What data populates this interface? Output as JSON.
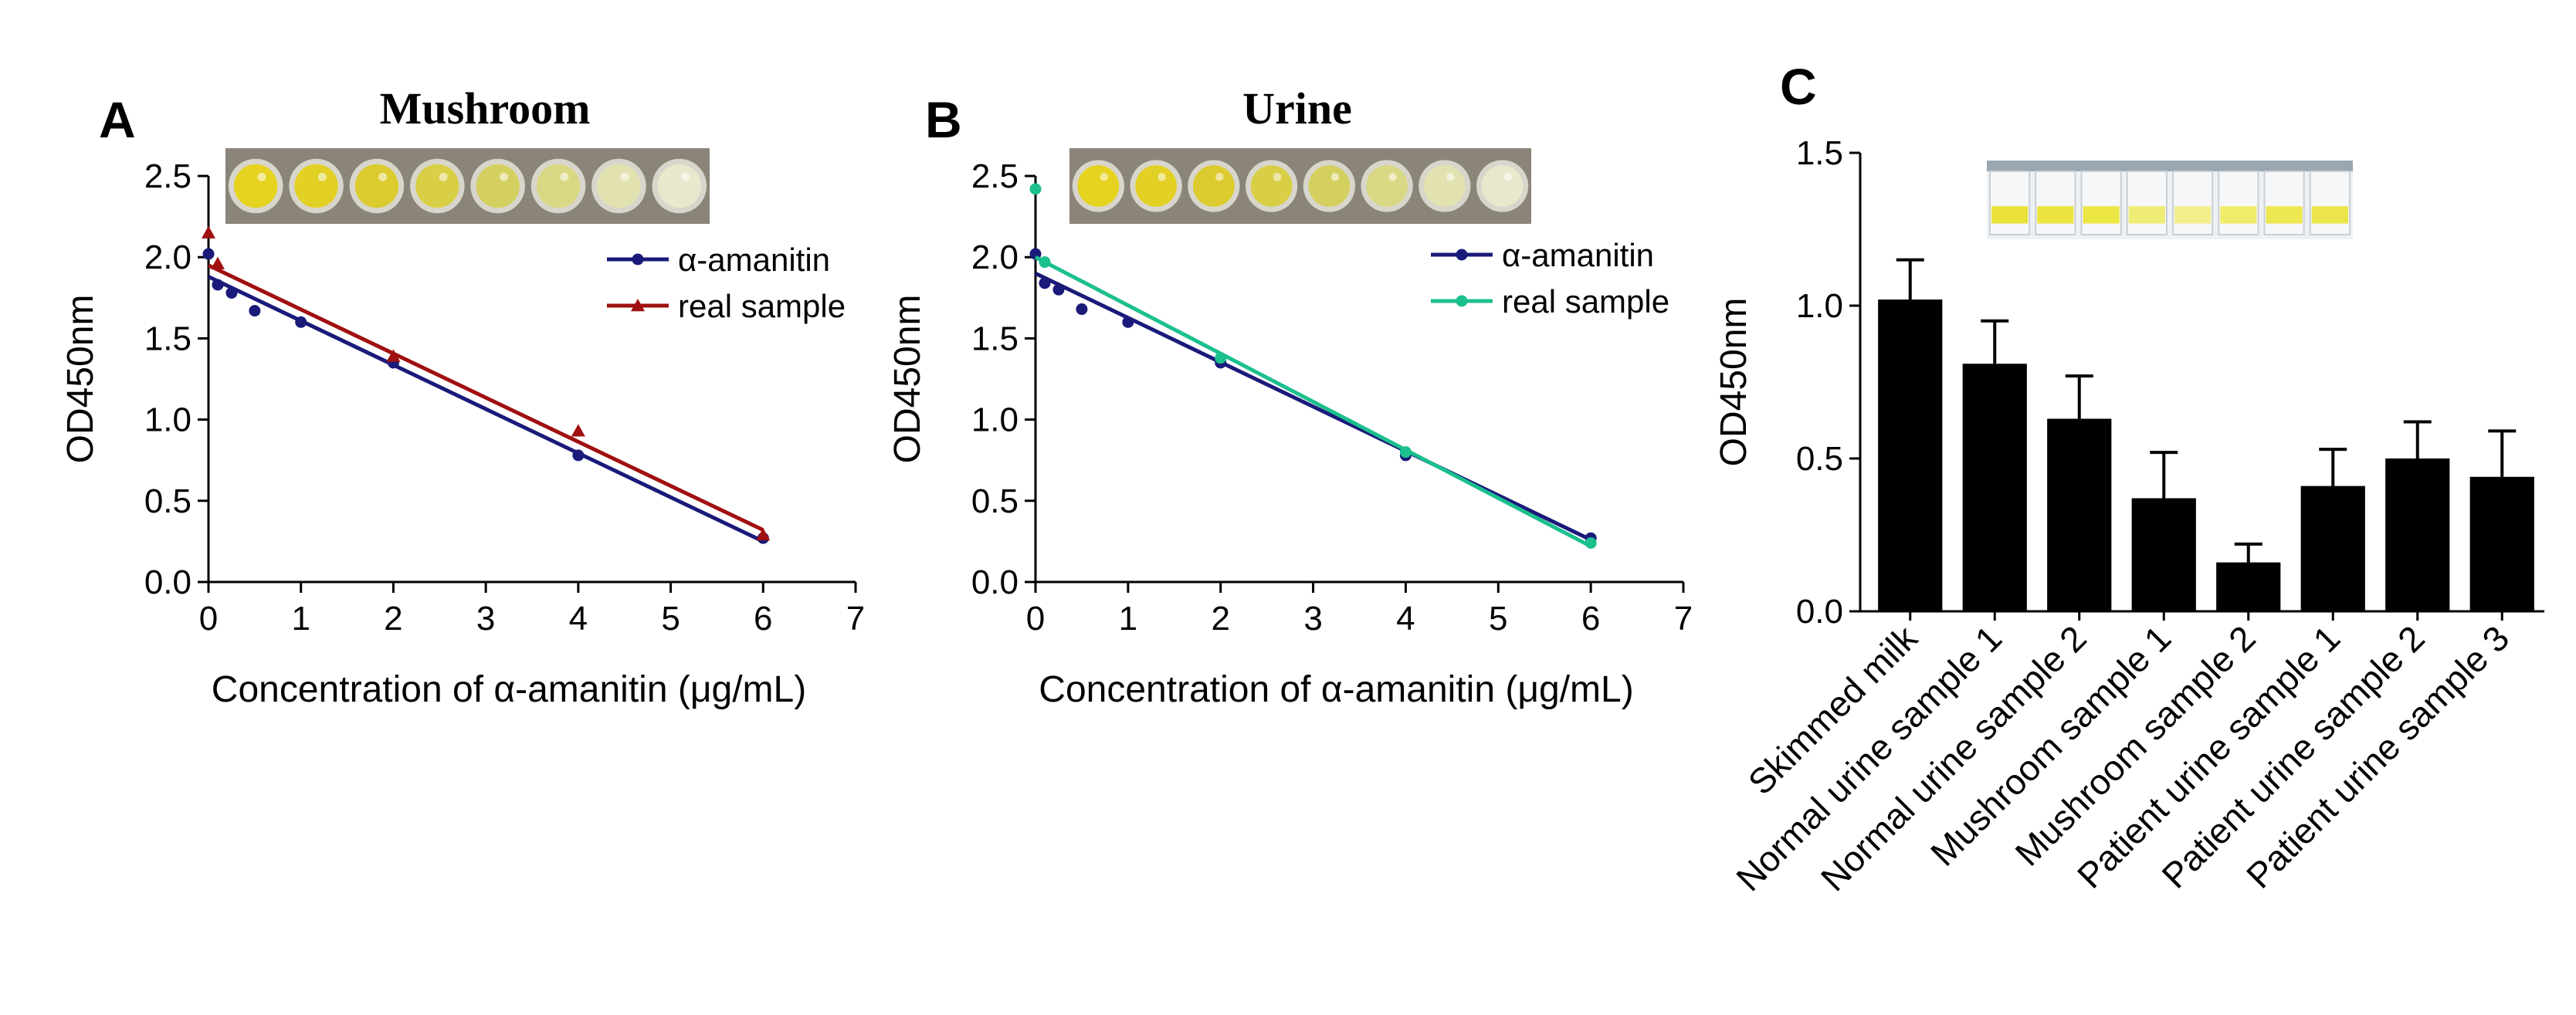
{
  "figure": {
    "panels": {
      "a": {
        "letter": "A",
        "title": "Mushroom"
      },
      "b": {
        "letter": "B",
        "title": "Urine"
      },
      "c": {
        "letter": "C",
        "title": ""
      }
    },
    "well_strip_colors": [
      "#e5d320",
      "#e3d024",
      "#dccb2e",
      "#d8cf46",
      "#d4d060",
      "#d9d884",
      "#e2e2b0",
      "#e8e8cc"
    ],
    "tube_strip_colors": [
      "#e9e13a",
      "#ebe440",
      "#ece744",
      "#eeec74",
      "#f1ef8c",
      "#efec6a",
      "#ede752",
      "#ebe44a"
    ]
  },
  "chart_data": [
    {
      "id": "A",
      "type": "line",
      "title": "Mushroom",
      "xlabel": "Concentration of α-amanitin (μg/mL)",
      "ylabel": "OD450nm",
      "xlim": [
        0,
        7
      ],
      "ylim": [
        0,
        2.5
      ],
      "xticks": [
        0,
        1,
        2,
        3,
        4,
        5,
        6,
        7
      ],
      "yticks": [
        0.0,
        0.5,
        1.0,
        1.5,
        2.0,
        2.5
      ],
      "xtick_labels": [
        "0",
        "1",
        "2",
        "3",
        "4",
        "5",
        "6",
        "7"
      ],
      "ytick_labels": [
        "0.0",
        "0.5",
        "1.0",
        "1.5",
        "2.0",
        "2.5"
      ],
      "legend_position": "top-right",
      "series": [
        {
          "name": "α-amanitin",
          "color": "#1a1a7a",
          "marker": "circle",
          "x": [
            0,
            0.1,
            0.25,
            0.5,
            1,
            2,
            4,
            6
          ],
          "y": [
            2.02,
            1.83,
            1.78,
            1.67,
            1.6,
            1.35,
            0.78,
            0.27
          ],
          "fit": [
            [
              0,
              1.88
            ],
            [
              6,
              0.25
            ]
          ]
        },
        {
          "name": "real sample",
          "color": "#a01010",
          "marker": "triangle",
          "x": [
            0,
            0.1,
            2,
            4,
            6
          ],
          "y": [
            2.15,
            1.96,
            1.39,
            0.93,
            0.29
          ],
          "fit": [
            [
              0,
              1.95
            ],
            [
              6,
              0.32
            ]
          ]
        }
      ]
    },
    {
      "id": "B",
      "type": "line",
      "title": "Urine",
      "xlabel": "Concentration of α-amanitin (μg/mL)",
      "ylabel": "OD450nm",
      "xlim": [
        0,
        7
      ],
      "ylim": [
        0,
        2.5
      ],
      "xticks": [
        0,
        1,
        2,
        3,
        4,
        5,
        6,
        7
      ],
      "yticks": [
        0.0,
        0.5,
        1.0,
        1.5,
        2.0,
        2.5
      ],
      "xtick_labels": [
        "0",
        "1",
        "2",
        "3",
        "4",
        "5",
        "6",
        "7"
      ],
      "ytick_labels": [
        "0.0",
        "0.5",
        "1.0",
        "1.5",
        "2.0",
        "2.5"
      ],
      "legend_position": "top-right",
      "series": [
        {
          "name": "α-amanitin",
          "color": "#1a1a7a",
          "marker": "circle",
          "x": [
            0,
            0.1,
            0.25,
            0.5,
            1,
            2,
            4,
            6
          ],
          "y": [
            2.02,
            1.84,
            1.8,
            1.68,
            1.6,
            1.35,
            0.78,
            0.27
          ],
          "fit": [
            [
              0,
              1.9
            ],
            [
              6,
              0.26
            ]
          ]
        },
        {
          "name": "real sample",
          "color": "#1cbf8e",
          "marker": "circle",
          "x": [
            0,
            0.1,
            2,
            4,
            6
          ],
          "y": [
            2.42,
            1.97,
            1.38,
            0.8,
            0.24
          ],
          "fit": [
            [
              0,
              2.0
            ],
            [
              6,
              0.22
            ]
          ]
        }
      ]
    },
    {
      "id": "C",
      "type": "bar",
      "title": "",
      "xlabel": "",
      "ylabel": "OD450nm",
      "ylim": [
        0,
        1.5
      ],
      "yticks": [
        0.0,
        0.5,
        1.0,
        1.5
      ],
      "ytick_labels": [
        "0.0",
        "0.5",
        "1.0",
        "1.5"
      ],
      "bar_color": "#000000",
      "categories": [
        "Skimmed milk",
        "Normal urine sample 1",
        "Normal urine sample 2",
        "Mushroom sample 1",
        "Mushroom sample 2",
        "Patient urine sample 1",
        "Patient urine sample 2",
        "Patient urine sample 3"
      ],
      "values": [
        1.02,
        0.81,
        0.63,
        0.37,
        0.16,
        0.41,
        0.5,
        0.44
      ],
      "errors": [
        0.13,
        0.14,
        0.14,
        0.15,
        0.06,
        0.12,
        0.12,
        0.15
      ]
    }
  ]
}
